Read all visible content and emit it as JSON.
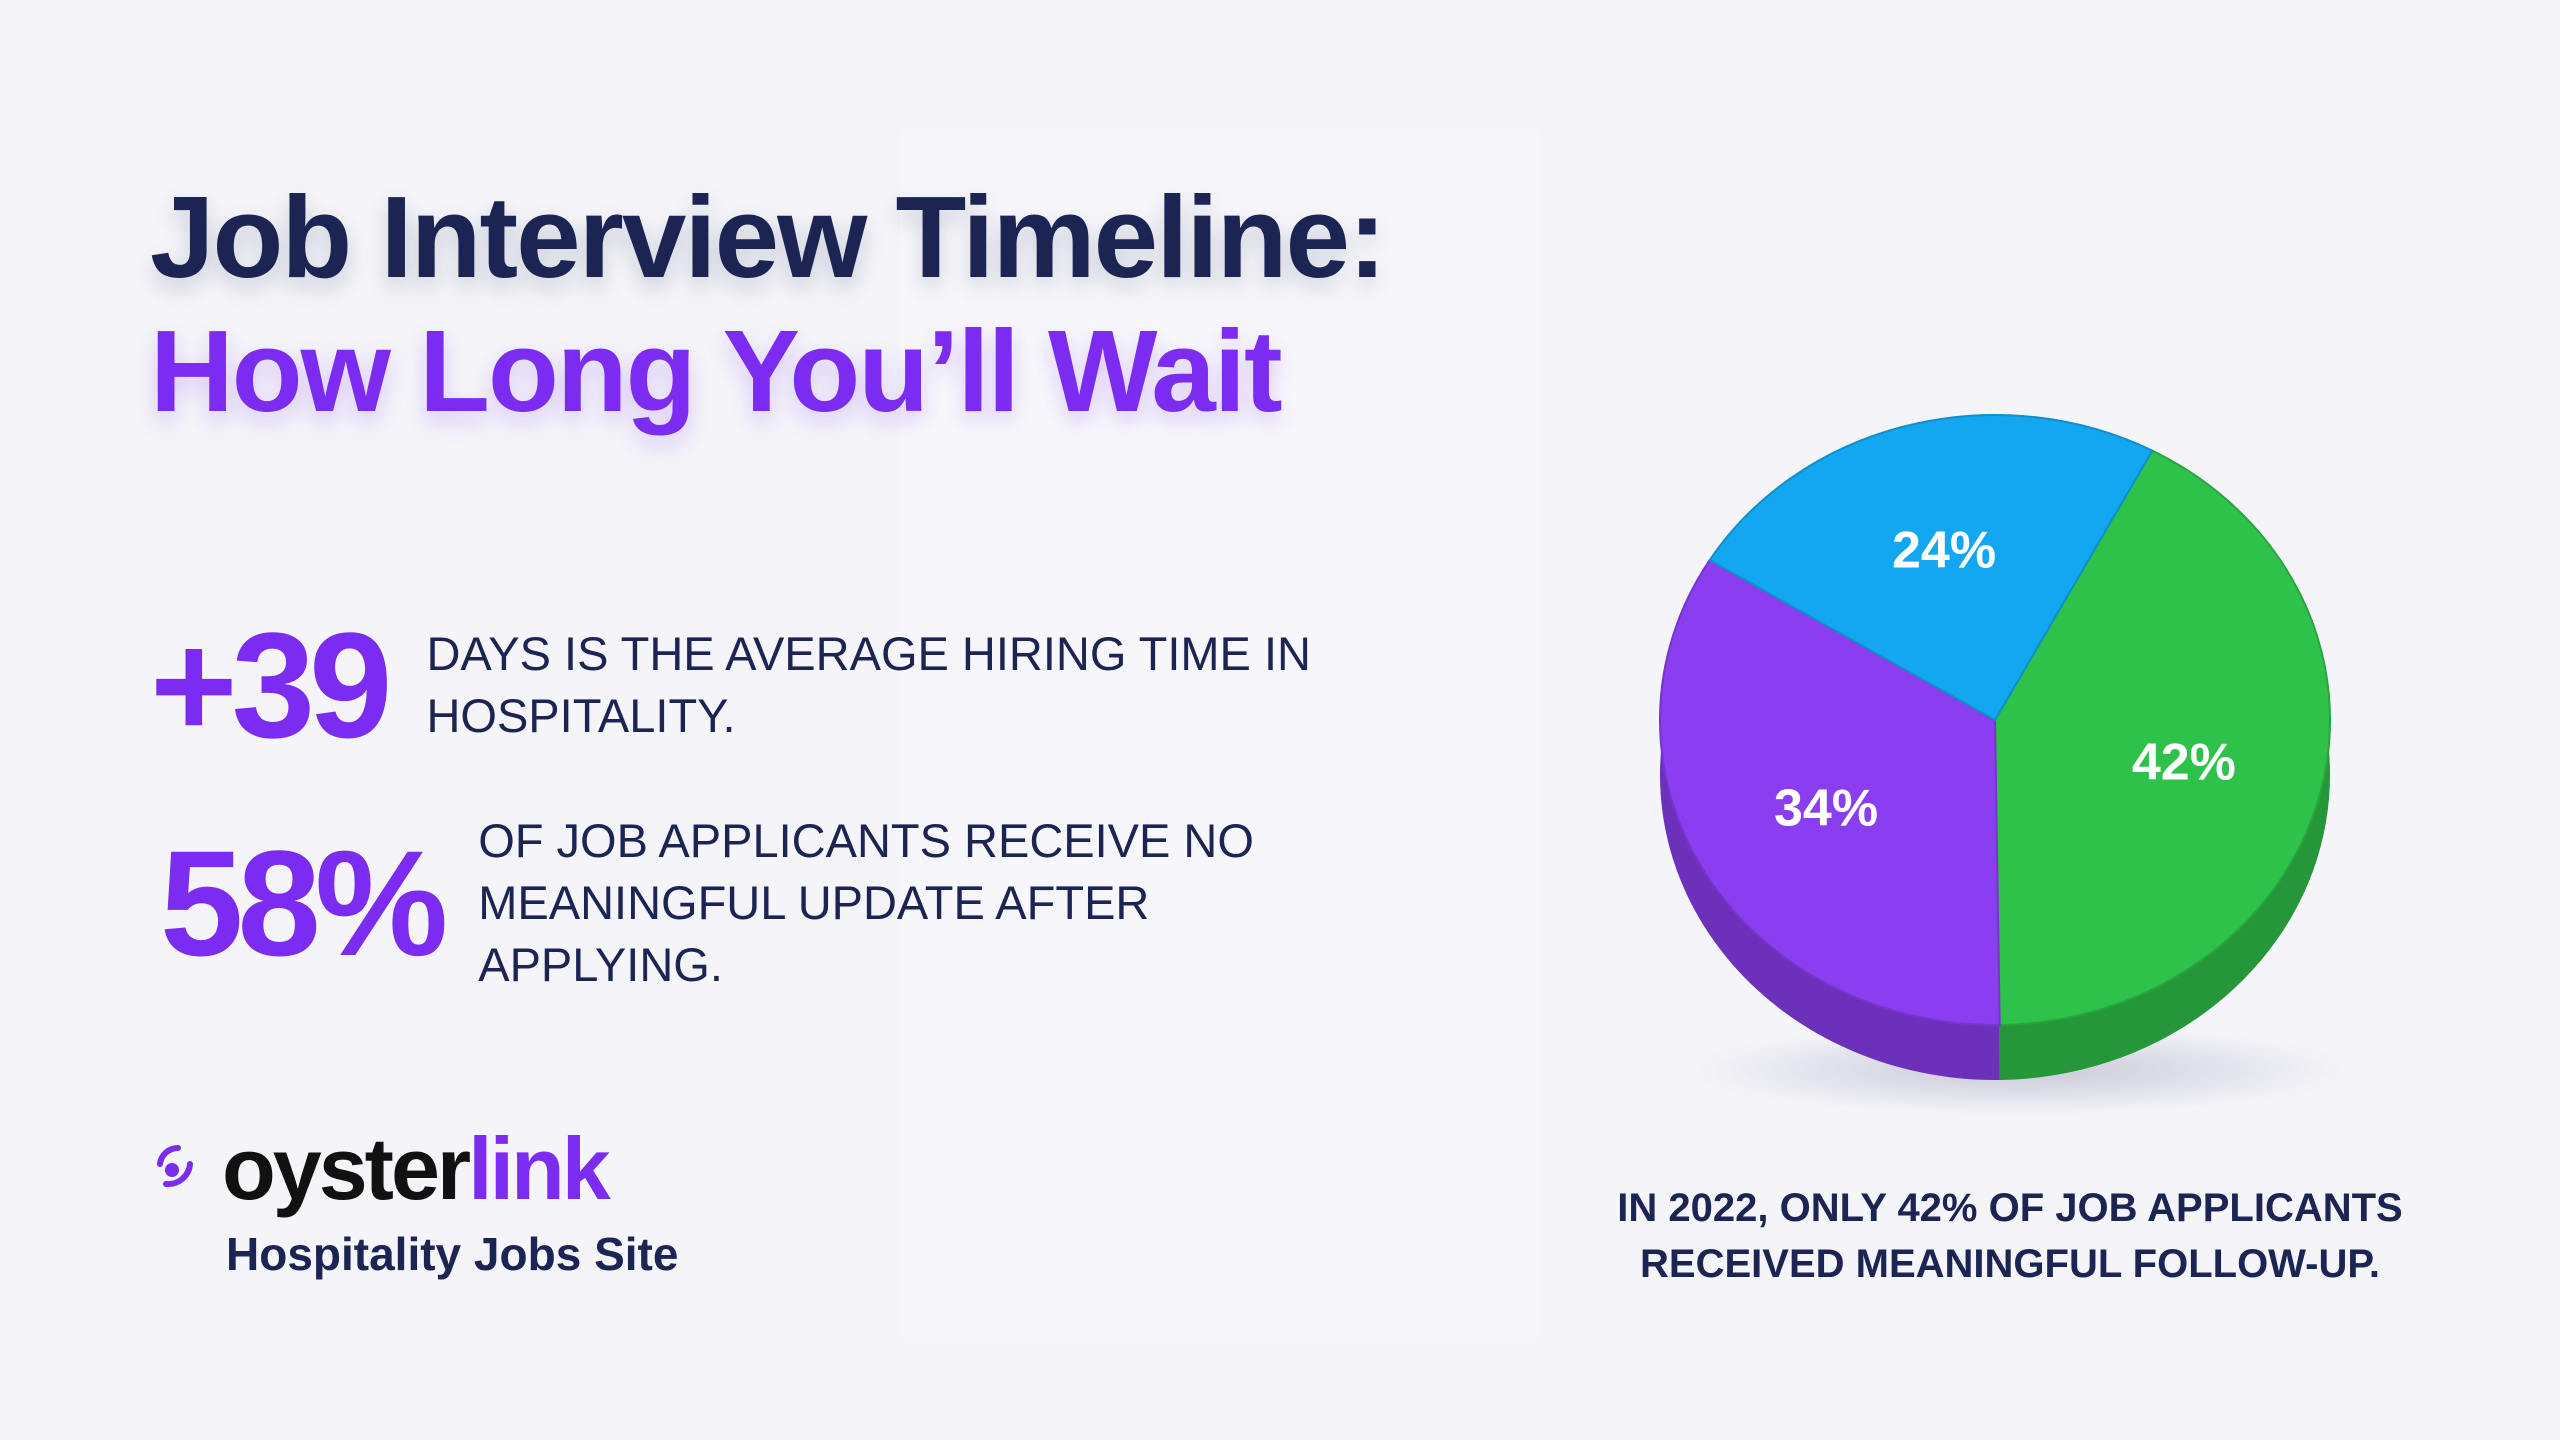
{
  "title": {
    "line1": "Job Interview Timeline:",
    "line2": "How Long You’ll Wait"
  },
  "stats": [
    {
      "value": "+39",
      "text": "DAYS IS THE AVERAGE HIRING TIME IN HOSPITALITY."
    },
    {
      "value": "58%",
      "text": "OF JOB APPLICANTS RECEIVE NO MEANINGFUL UPDATE AFTER APPLYING."
    }
  ],
  "brand": {
    "name_part1": "oyster",
    "name_part2": "link",
    "tagline": "Hospitality Jobs Site"
  },
  "colors": {
    "navy": "#1b2452",
    "purple": "#7c2cf0",
    "green": "#2fc24a",
    "blue": "#12a7f0",
    "violet": "#8a3ef0"
  },
  "chart_data": {
    "type": "pie",
    "values": [
      42,
      34,
      24
    ],
    "labels": [
      "42%",
      "34%",
      "24%"
    ],
    "colors": [
      "#2fc24a",
      "#8a3ef0",
      "#12a7f0"
    ],
    "caption": "IN 2022, ONLY 42% OF JOB APPLICANTS RECEIVED MEANINGFUL FOLLOW-UP."
  }
}
